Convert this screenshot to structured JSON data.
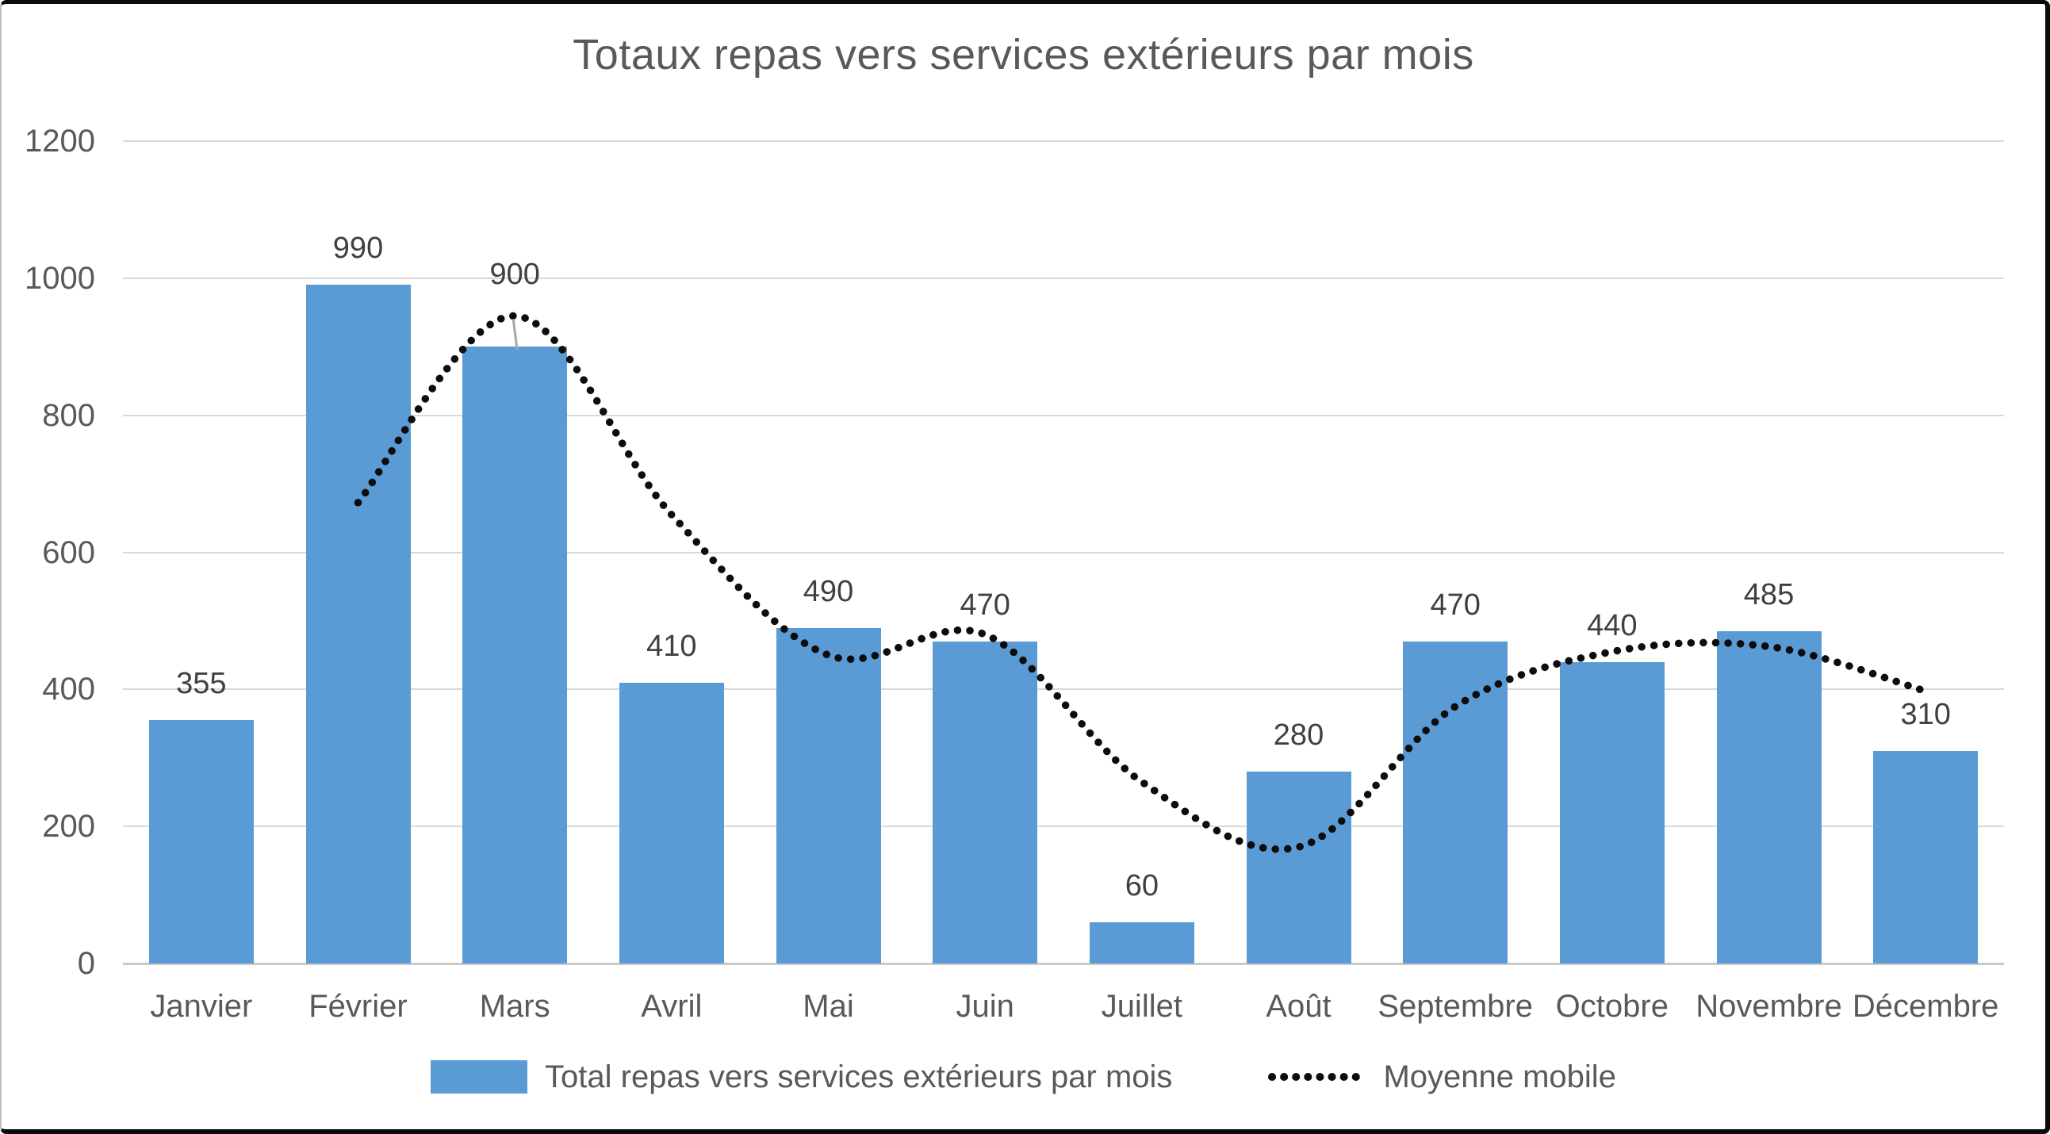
{
  "chart_data": {
    "type": "bar",
    "title": "Totaux repas vers services extérieurs par mois",
    "categories": [
      "Janvier",
      "Février",
      "Mars",
      "Avril",
      "Mai",
      "Juin",
      "Juillet",
      "Août",
      "Septembre",
      "Octobre",
      "Novembre",
      "Décembre"
    ],
    "series": [
      {
        "name": "Total repas vers services extérieurs par mois",
        "type": "bar",
        "color": "#5b9bd5",
        "values": [
          355,
          990,
          900,
          410,
          490,
          470,
          60,
          280,
          470,
          440,
          485,
          310
        ],
        "data_labels": [
          355,
          990,
          900,
          410,
          490,
          470,
          60,
          280,
          470,
          440,
          485,
          310
        ]
      },
      {
        "name": "Moyenne mobile",
        "type": "dotted-line",
        "color": "#0d0d0d",
        "smoothed": true,
        "values": [
          null,
          672.5,
          945,
          655,
          450,
          480,
          265,
          170,
          375,
          455,
          462.5,
          397.5
        ]
      }
    ],
    "ylabel": "",
    "xlabel": "",
    "ylim": [
      0,
      1200
    ],
    "yticks": [
      0,
      200,
      400,
      600,
      800,
      1000,
      1200
    ],
    "grid": true,
    "legend_position": "bottom",
    "label_leader_on": "Mars",
    "colors": {
      "bar": "#5b9bd5",
      "gridline": "#d9d9d9",
      "axis_line": "#c9c9c9",
      "title_text": "#595959",
      "axis_text": "#595959",
      "data_label_text": "#404040",
      "leader_line": "#a6a6a6",
      "frame_border": "#0b0b0b"
    }
  }
}
